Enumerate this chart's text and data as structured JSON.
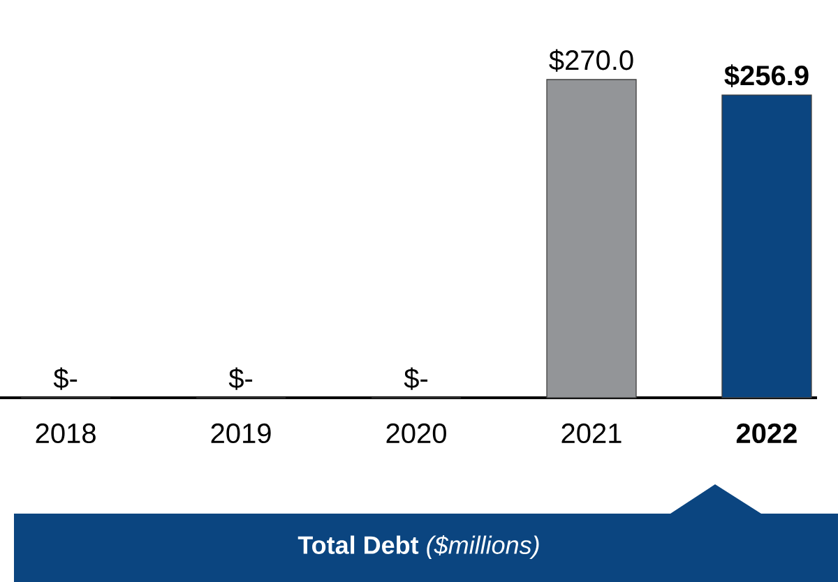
{
  "chart_data": {
    "type": "bar",
    "title": "**Total Debt**  *($millions)*",
    "categories": [
      "2018",
      "2019",
      "2020",
      "2021",
      "2022"
    ],
    "values": [
      0,
      0,
      0,
      270.0,
      256.9
    ],
    "colors": [
      "#939598",
      "#939598",
      "#939598",
      "#939598",
      "#0b4580"
    ],
    "value_labels": [
      "$-",
      "$-",
      "$-",
      "$270.0",
      "$256.9"
    ]
  }
}
